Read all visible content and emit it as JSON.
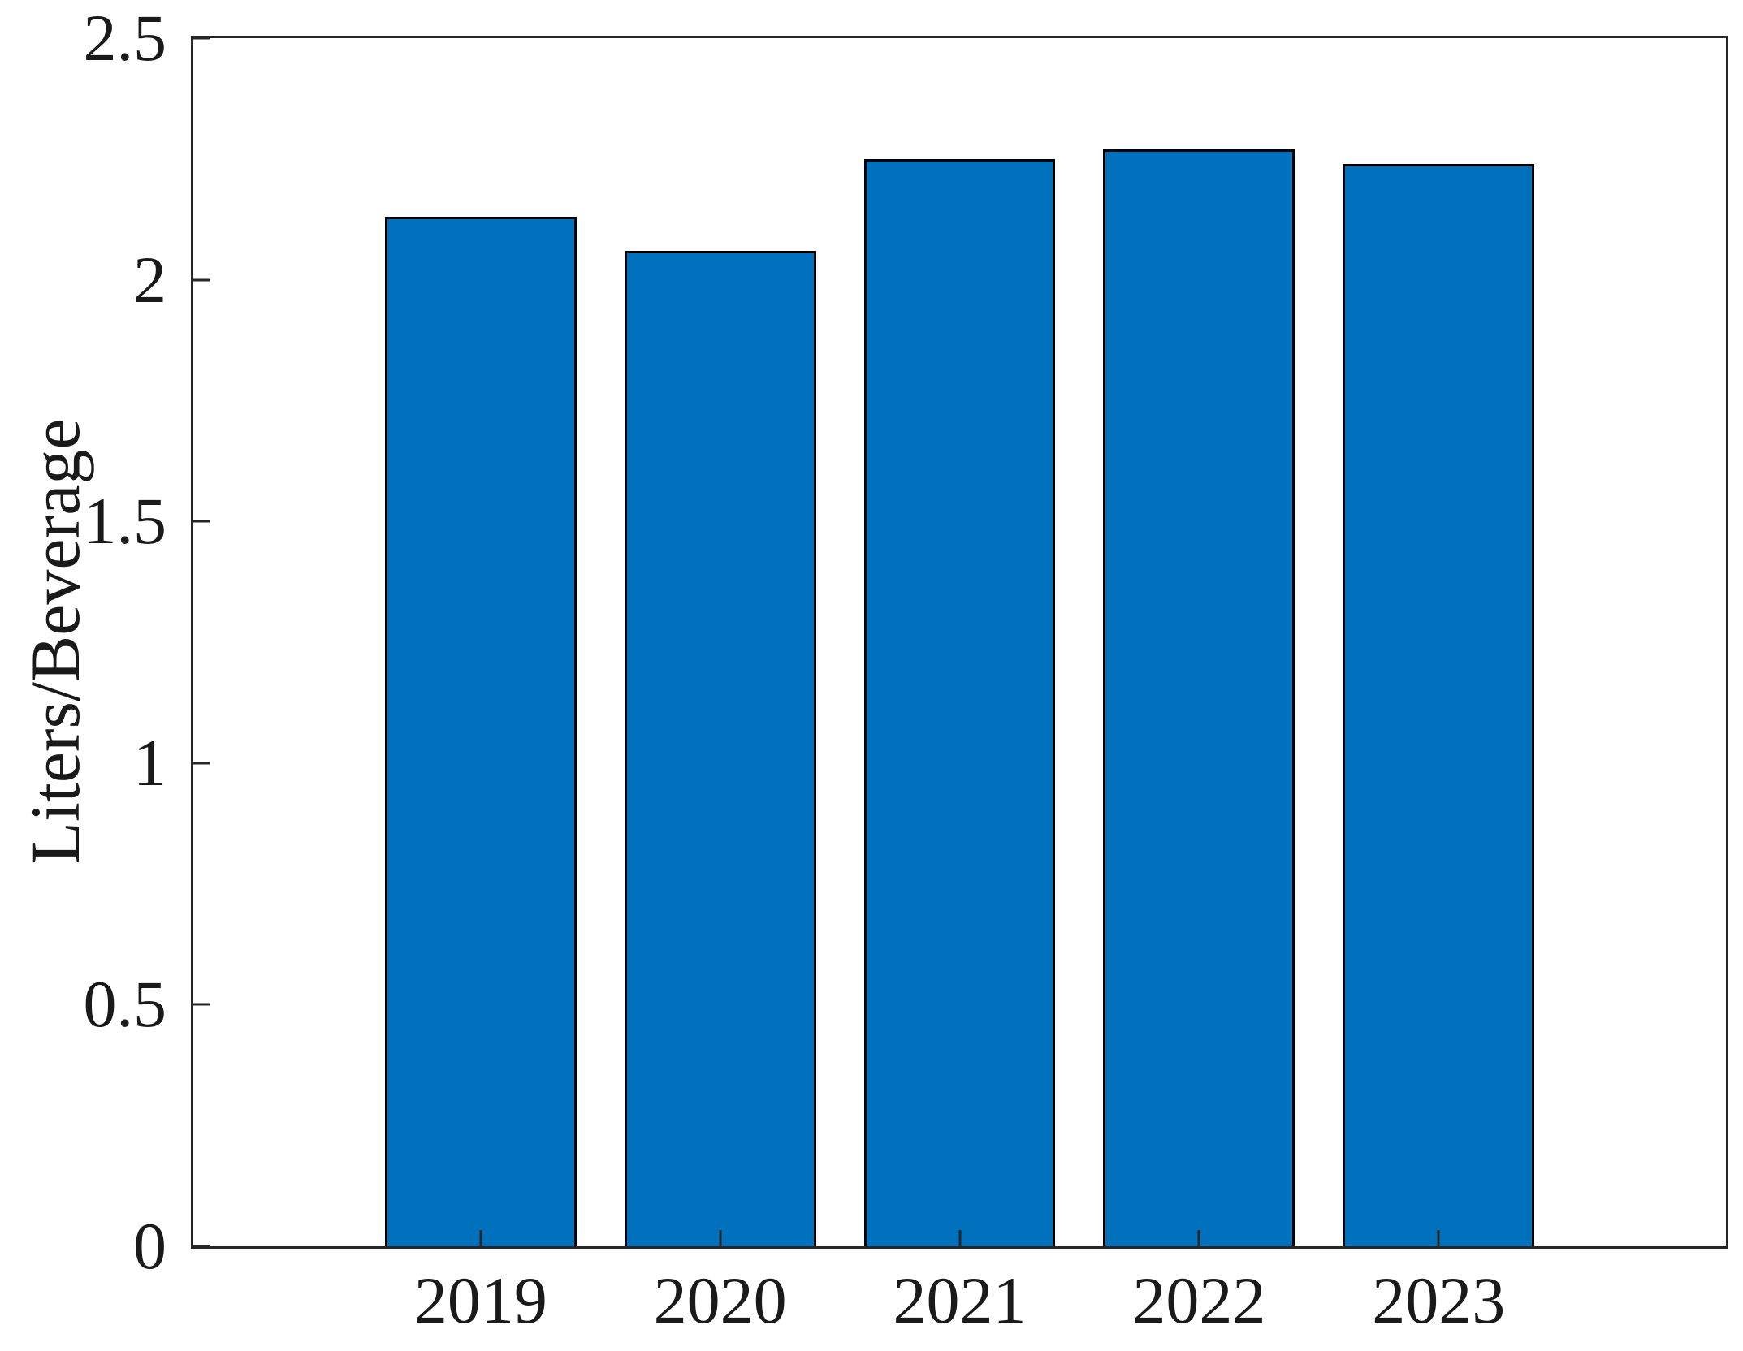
{
  "chart_data": {
    "type": "bar",
    "title": "",
    "categories": [
      "2019",
      "2020",
      "2021",
      "2022",
      "2023"
    ],
    "values": [
      2.13,
      2.06,
      2.25,
      2.27,
      2.24
    ],
    "x_positions": [
      1,
      2,
      3,
      4,
      5
    ],
    "bar_width_data_units": 0.8,
    "xlabel": "",
    "ylabel": "Liters/Beverage",
    "xlim": [
      -0.2,
      6.2
    ],
    "ylim": [
      0,
      2.5
    ],
    "yticks": {
      "values": [
        0,
        0.5,
        1,
        1.5,
        2,
        2.5
      ],
      "labels": [
        "0",
        "0.5",
        "1",
        "1.5",
        "2",
        "2.5"
      ]
    },
    "grid": "off",
    "legend": "none",
    "tick_direction": "in",
    "bar_fill_color": "#0072BD",
    "bar_edge_color": "#000000",
    "axis_color": "#262626",
    "text_color": "#1a1a1a"
  }
}
